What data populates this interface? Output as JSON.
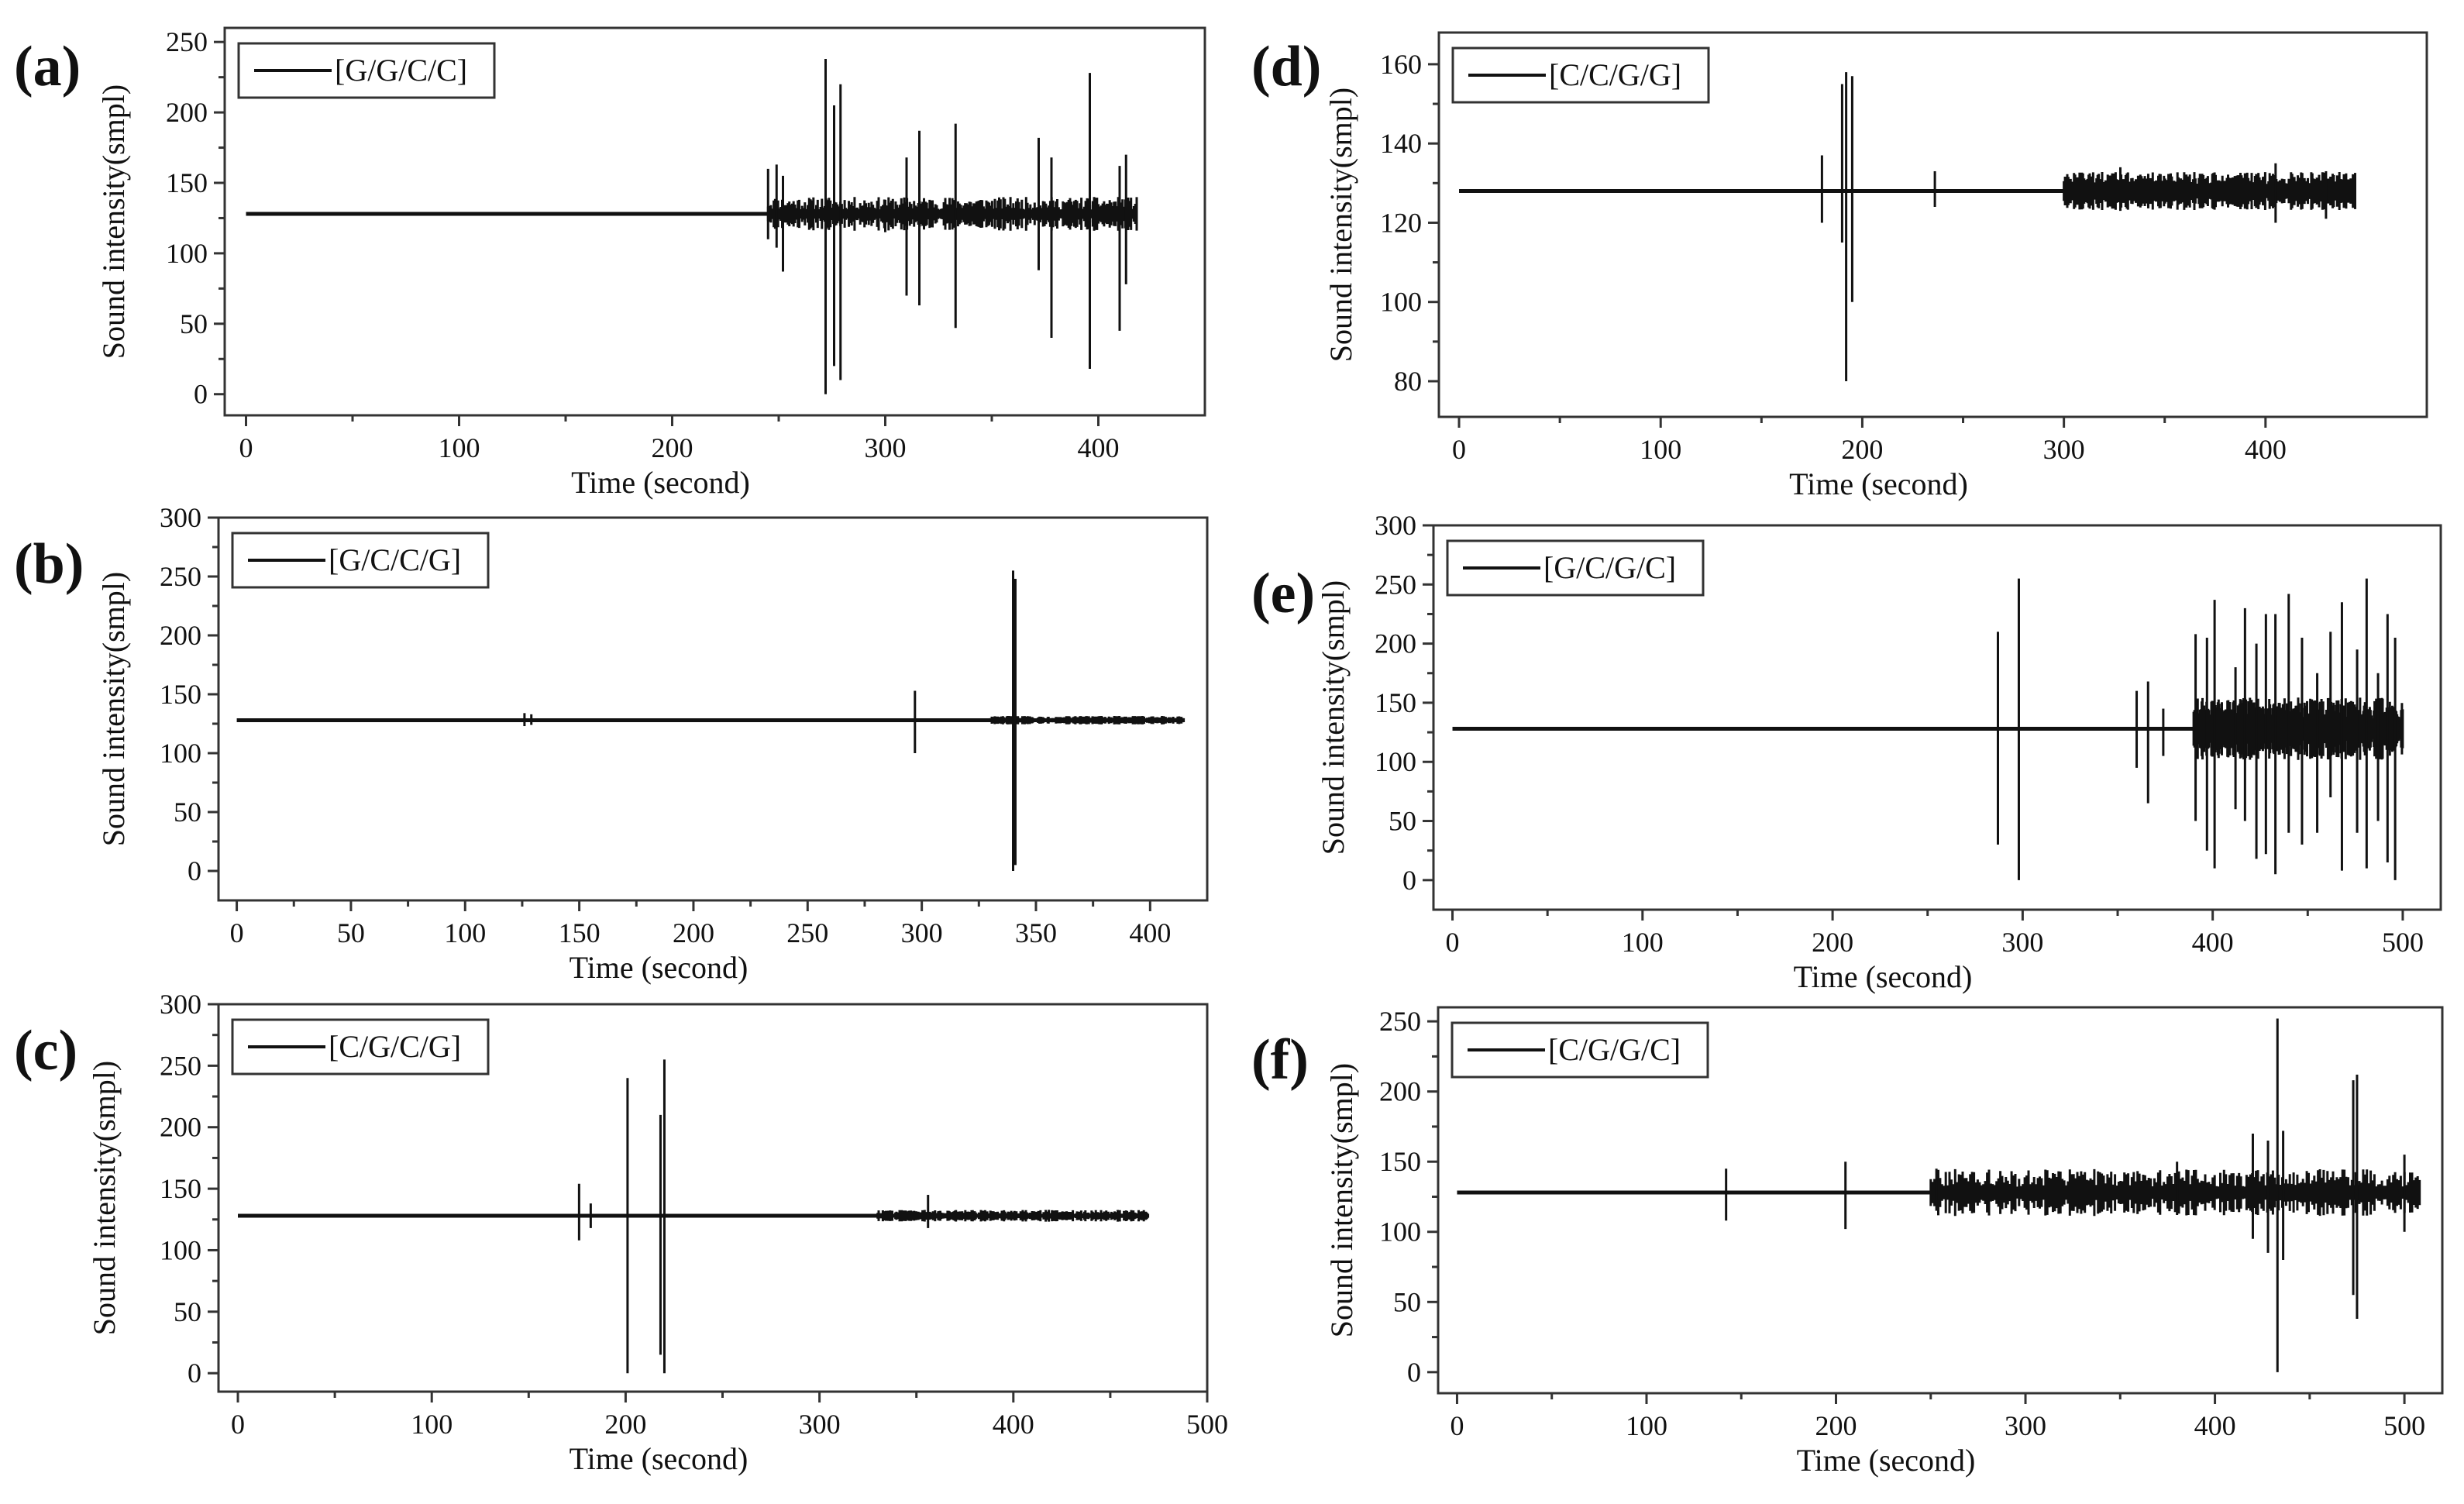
{
  "figure": {
    "panel_labels": [
      "(a)",
      "(b)",
      "(c)",
      "(d)",
      "(e)",
      "(f)"
    ]
  },
  "chart_data": [
    {
      "id": "a",
      "type": "line",
      "title": "",
      "panel_label": "(a)",
      "legend": "[G/G/C/C]",
      "legend_position": "top-left",
      "xlabel": "Time (second)",
      "ylabel": "Sound intensity(smpl)",
      "xlim": [
        -10,
        450
      ],
      "ylim": [
        -15,
        260
      ],
      "xticks": [
        0,
        100,
        200,
        300,
        400
      ],
      "yticks": [
        0,
        50,
        100,
        150,
        200,
        250
      ],
      "x_range": [
        0,
        418
      ],
      "baseline": 128,
      "noise_start": 245,
      "noise_amp": 10,
      "spikes": [
        {
          "x": 245,
          "min": 110,
          "max": 160
        },
        {
          "x": 249,
          "min": 104,
          "max": 163
        },
        {
          "x": 252,
          "min": 87,
          "max": 155
        },
        {
          "x": 272,
          "min": 0,
          "max": 238
        },
        {
          "x": 276,
          "min": 20,
          "max": 205
        },
        {
          "x": 279,
          "min": 10,
          "max": 220
        },
        {
          "x": 300,
          "min": 115,
          "max": 138
        },
        {
          "x": 310,
          "min": 70,
          "max": 168
        },
        {
          "x": 316,
          "min": 63,
          "max": 187
        },
        {
          "x": 333,
          "min": 47,
          "max": 192
        },
        {
          "x": 372,
          "min": 88,
          "max": 182
        },
        {
          "x": 378,
          "min": 40,
          "max": 168
        },
        {
          "x": 396,
          "min": 18,
          "max": 228
        },
        {
          "x": 410,
          "min": 45,
          "max": 162
        },
        {
          "x": 413,
          "min": 78,
          "max": 170
        }
      ]
    },
    {
      "id": "b",
      "type": "line",
      "title": "",
      "panel_label": "(b)",
      "legend": "[G/C/C/G]",
      "legend_position": "top-left",
      "xlabel": "Time (second)",
      "ylabel": "Sound intensity(smpl)",
      "xlim": [
        -8,
        425
      ],
      "ylim": [
        -25,
        300
      ],
      "xticks": [
        0,
        50,
        100,
        150,
        200,
        250,
        300,
        350,
        400
      ],
      "yticks": [
        0,
        50,
        100,
        150,
        200,
        250,
        300
      ],
      "x_range": [
        0,
        415
      ],
      "baseline": 128,
      "noise_start": 330,
      "noise_amp": 3,
      "spikes": [
        {
          "x": 126,
          "min": 123,
          "max": 134
        },
        {
          "x": 129,
          "min": 124,
          "max": 133
        },
        {
          "x": 297,
          "min": 100,
          "max": 153
        },
        {
          "x": 340,
          "min": 0,
          "max": 255
        },
        {
          "x": 341,
          "min": 5,
          "max": 248
        }
      ]
    },
    {
      "id": "c",
      "type": "line",
      "title": "",
      "panel_label": "(c)",
      "legend": "[C/G/C/G]",
      "legend_position": "top-left",
      "xlabel": "Time (second)",
      "ylabel": "Sound intensity(smpl)",
      "xlim": [
        -10,
        500
      ],
      "ylim": [
        -15,
        300
      ],
      "xticks": [
        0,
        100,
        200,
        300,
        400,
        500
      ],
      "yticks": [
        0,
        50,
        100,
        150,
        200,
        250,
        300
      ],
      "x_range": [
        0,
        470
      ],
      "baseline": 128,
      "noise_start": 330,
      "noise_amp": 4,
      "spikes": [
        {
          "x": 176,
          "min": 108,
          "max": 154
        },
        {
          "x": 182,
          "min": 118,
          "max": 138
        },
        {
          "x": 201,
          "min": 0,
          "max": 240
        },
        {
          "x": 218,
          "min": 15,
          "max": 210
        },
        {
          "x": 220,
          "min": 0,
          "max": 255
        },
        {
          "x": 356,
          "min": 118,
          "max": 145
        }
      ]
    },
    {
      "id": "d",
      "type": "line",
      "title": "",
      "panel_label": "(d)",
      "legend": "[C/C/G/G]",
      "legend_position": "top-left",
      "xlabel": "Time (second)",
      "ylabel": "Sound intensity(smpl)",
      "xlim": [
        -10,
        480
      ],
      "ylim": [
        71,
        168
      ],
      "xticks": [
        0,
        100,
        200,
        300,
        400
      ],
      "yticks": [
        80,
        100,
        120,
        140,
        160
      ],
      "x_range": [
        0,
        445
      ],
      "baseline": 128,
      "noise_start": 300,
      "noise_amp": 4,
      "spikes": [
        {
          "x": 180,
          "min": 120,
          "max": 137
        },
        {
          "x": 190,
          "min": 115,
          "max": 155
        },
        {
          "x": 192,
          "min": 80,
          "max": 158
        },
        {
          "x": 195,
          "min": 100,
          "max": 157
        },
        {
          "x": 236,
          "min": 124,
          "max": 133
        },
        {
          "x": 328,
          "min": 123,
          "max": 134
        },
        {
          "x": 405,
          "min": 120,
          "max": 135
        },
        {
          "x": 430,
          "min": 121,
          "max": 133
        }
      ]
    },
    {
      "id": "e",
      "type": "line",
      "title": "",
      "panel_label": "(e)",
      "legend": "[G/C/G/C]",
      "legend_position": "top-left",
      "xlabel": "Time (second)",
      "ylabel": "Sound intensity(smpl)",
      "xlim": [
        -10,
        520
      ],
      "ylim": [
        -25,
        300
      ],
      "xticks": [
        0,
        100,
        200,
        300,
        400,
        500
      ],
      "yticks": [
        0,
        50,
        100,
        150,
        200,
        250,
        300
      ],
      "x_range": [
        0,
        500
      ],
      "baseline": 128,
      "noise_start": 390,
      "noise_amp": 22,
      "spikes": [
        {
          "x": 287,
          "min": 30,
          "max": 210
        },
        {
          "x": 298,
          "min": 0,
          "max": 255
        },
        {
          "x": 360,
          "min": 95,
          "max": 160
        },
        {
          "x": 366,
          "min": 65,
          "max": 168
        },
        {
          "x": 374,
          "min": 105,
          "max": 145
        },
        {
          "x": 391,
          "min": 50,
          "max": 208
        },
        {
          "x": 397,
          "min": 25,
          "max": 205
        },
        {
          "x": 401,
          "min": 10,
          "max": 237
        },
        {
          "x": 412,
          "min": 60,
          "max": 180
        },
        {
          "x": 417,
          "min": 50,
          "max": 230
        },
        {
          "x": 423,
          "min": 18,
          "max": 200
        },
        {
          "x": 428,
          "min": 22,
          "max": 225
        },
        {
          "x": 433,
          "min": 5,
          "max": 225
        },
        {
          "x": 440,
          "min": 40,
          "max": 242
        },
        {
          "x": 447,
          "min": 30,
          "max": 205
        },
        {
          "x": 455,
          "min": 40,
          "max": 175
        },
        {
          "x": 462,
          "min": 70,
          "max": 210
        },
        {
          "x": 468,
          "min": 8,
          "max": 235
        },
        {
          "x": 476,
          "min": 40,
          "max": 195
        },
        {
          "x": 481,
          "min": 10,
          "max": 255
        },
        {
          "x": 487,
          "min": 50,
          "max": 175
        },
        {
          "x": 492,
          "min": 15,
          "max": 225
        },
        {
          "x": 496,
          "min": 0,
          "max": 205
        }
      ]
    },
    {
      "id": "f",
      "type": "line",
      "title": "",
      "panel_label": "(f)",
      "legend": "[C/G/G/C]",
      "legend_position": "top-left",
      "xlabel": "Time (second)",
      "ylabel": "Sound intensity(smpl)",
      "xlim": [
        -10,
        520
      ],
      "ylim": [
        -15,
        260
      ],
      "xticks": [
        0,
        100,
        200,
        300,
        400,
        500
      ],
      "yticks": [
        0,
        50,
        100,
        150,
        200,
        250
      ],
      "x_range": [
        0,
        508
      ],
      "baseline": 128,
      "noise_start": 250,
      "noise_amp": 14,
      "spikes": [
        {
          "x": 142,
          "min": 108,
          "max": 145
        },
        {
          "x": 205,
          "min": 102,
          "max": 150
        },
        {
          "x": 253,
          "min": 115,
          "max": 145
        },
        {
          "x": 380,
          "min": 112,
          "max": 150
        },
        {
          "x": 420,
          "min": 95,
          "max": 170
        },
        {
          "x": 428,
          "min": 85,
          "max": 165
        },
        {
          "x": 433,
          "min": 0,
          "max": 252
        },
        {
          "x": 436,
          "min": 80,
          "max": 172
        },
        {
          "x": 473,
          "min": 55,
          "max": 208
        },
        {
          "x": 475,
          "min": 38,
          "max": 212
        },
        {
          "x": 500,
          "min": 100,
          "max": 155
        }
      ]
    }
  ]
}
